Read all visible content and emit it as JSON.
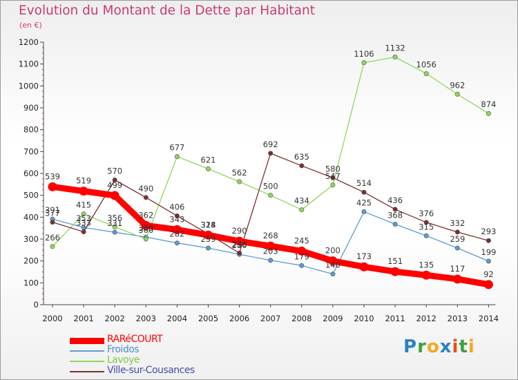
{
  "chart_data": {
    "type": "line",
    "title": "Evolution du Montant de la Dette par Habitant",
    "unit_label": "(en €)",
    "x": [
      "2000",
      "2001",
      "2002",
      "2003",
      "2004",
      "2005",
      "2006",
      "2007",
      "2008",
      "2009",
      "2010",
      "2011",
      "2012",
      "2013",
      "2014"
    ],
    "ylim": [
      0,
      1200
    ],
    "yticks": [
      0,
      100,
      200,
      300,
      400,
      500,
      600,
      700,
      800,
      900,
      1000,
      1100,
      1200
    ],
    "grid": false,
    "legend_position": "bottom-left",
    "series": [
      {
        "name": "RARéCOURT",
        "color": "#ff0000",
        "values": [
          539,
          519,
          499,
          362,
          343,
          318,
          290,
          268,
          245,
          200,
          173,
          151,
          135,
          117,
          92
        ]
      },
      {
        "name": "Froidos",
        "color": "#5b9bd5",
        "values": [
          391,
          353,
          331,
          309,
          282,
          259,
          230,
          203,
          179,
          140,
          425,
          368,
          315,
          259,
          199
        ]
      },
      {
        "name": "Lavoye",
        "color": "#8fd65a",
        "values": [
          266,
          415,
          356,
          300,
          677,
          621,
          562,
          500,
          434,
          547,
          1106,
          1132,
          1056,
          962,
          874
        ]
      },
      {
        "name": "Ville-sur-Cousances",
        "color": "#7a2e2e",
        "values": [
          377,
          333,
          570,
          490,
          406,
          324,
          236,
          692,
          635,
          580,
          514,
          436,
          376,
          332,
          293
        ]
      }
    ]
  },
  "brand": {
    "letters": [
      "P",
      "r",
      "o",
      "x",
      "i",
      "t",
      "i"
    ],
    "colors": [
      "#2a83c4",
      "#3aa23d",
      "#f5a623",
      "#2a83c4",
      "#e94e1b",
      "#3aa23d",
      "#f5a623"
    ]
  }
}
